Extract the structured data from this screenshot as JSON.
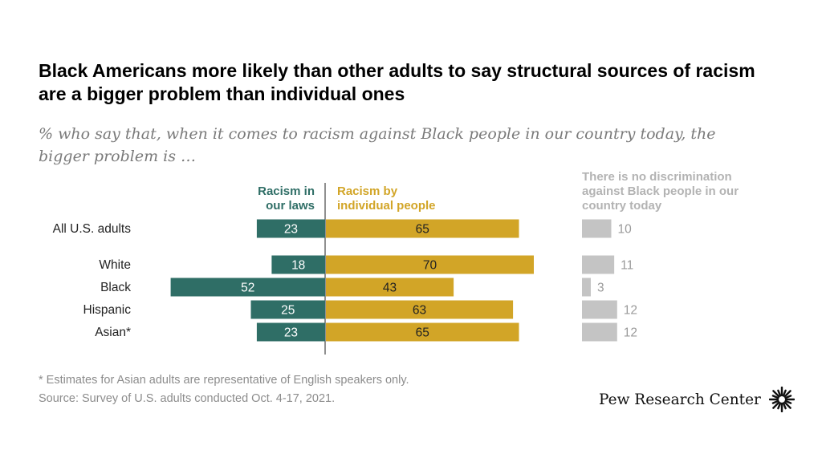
{
  "title": "Black Americans more likely than other adults to say structural sources of racism are a bigger problem than individual ones",
  "subtitle": "% who say that, when it comes to racism against Black people in our country today, the bigger problem is …",
  "legend": {
    "laws": "Racism in\nour laws",
    "individual": "Racism by\nindividual people",
    "no_discrimination": "There is no discrimination\nagainst Black people in our\ncountry today"
  },
  "colors": {
    "laws": "#2f6e66",
    "individual": "#d2a527",
    "no_discrimination": "#c4c4c4"
  },
  "chart_data": {
    "type": "bar",
    "orientation": "horizontal",
    "categories": [
      "All U.S. adults",
      "White",
      "Black",
      "Hispanic",
      "Asian*"
    ],
    "series": [
      {
        "name": "Racism in our laws",
        "values": [
          23,
          18,
          52,
          25,
          23
        ]
      },
      {
        "name": "Racism by individual people",
        "values": [
          65,
          70,
          43,
          63,
          65
        ]
      },
      {
        "name": "There is no discrimination against Black people in our country today",
        "values": [
          10,
          11,
          3,
          12,
          12
        ]
      }
    ],
    "title": "Black Americans more likely than other adults to say structural sources of racism are a bigger problem than individual ones",
    "xlabel": "",
    "ylabel": "",
    "grid": false
  },
  "footnote": "* Estimates for Asian adults are representative of English speakers only.",
  "source": "Source: Survey of U.S. adults conducted Oct. 4-17, 2021.",
  "logo_text": "Pew Research Center"
}
